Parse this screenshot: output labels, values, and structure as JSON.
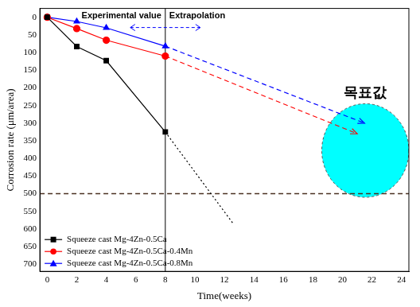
{
  "chart_data": {
    "type": "line",
    "x_label": "Time(weeks)",
    "y_label": "Corrosion rate (μm/area)",
    "x": [
      0,
      2,
      4,
      8
    ],
    "xlim": [
      -0.5,
      24.5
    ],
    "xticks": [
      0,
      2,
      4,
      6,
      8,
      10,
      12,
      14,
      16,
      18,
      20,
      22,
      24
    ],
    "ylim": [
      720,
      -25
    ],
    "yticks": [
      0,
      50,
      100,
      150,
      200,
      250,
      300,
      350,
      400,
      450,
      500,
      550,
      600,
      650,
      700
    ],
    "grid": false,
    "legend": "lower left",
    "series": [
      {
        "name": "Squeeze cast Mg-4Zn-0.5Ca",
        "color": "#000000",
        "marker": "square",
        "line_style": "solid",
        "values": [
          0,
          83,
          123,
          325
        ],
        "extrapolation": {
          "x": [
            8,
            12.6
          ],
          "values": [
            325,
            585
          ],
          "line_style": "dotted",
          "marker": "none"
        }
      },
      {
        "name": "Squeeze cast Mg-4Zn-0.5Ca-0.4Mn",
        "color": "#ff0000",
        "marker": "circle",
        "line_style": "solid",
        "values": [
          0,
          32,
          65,
          110
        ],
        "extrapolation": {
          "x": [
            8,
            21
          ],
          "values": [
            110,
            330
          ],
          "line_style": "dashed",
          "marker": "arrow"
        }
      },
      {
        "name": "Squeeze cast Mg-4Zn-0.5Ca-0.8Mn",
        "color": "#0000ff",
        "marker": "triangle",
        "line_style": "solid",
        "values": [
          0,
          12,
          30,
          82
        ],
        "extrapolation": {
          "x": [
            8,
            21.5
          ],
          "values": [
            82,
            300
          ],
          "line_style": "dashed",
          "marker": "arrow"
        }
      }
    ],
    "annotations": {
      "left_text": "Experimental value",
      "right_text": "Extrapolation",
      "divider_x": 8
    },
    "limit_line": 500,
    "target": {
      "label": "목표값",
      "x": [
        18.6,
        24.5
      ],
      "y": [
        245,
        510
      ]
    }
  }
}
